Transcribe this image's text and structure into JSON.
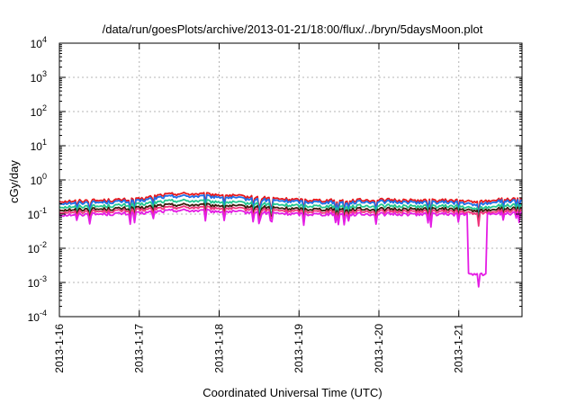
{
  "chart_data": {
    "type": "line",
    "title": "/data/run/goesPlots/archive/2013-01-21/18:00/flux/../bryn/5daysMoon.plot",
    "xlabel": "Coordinated Universal Time (UTC)",
    "ylabel": "cGy/day",
    "yscale": "log",
    "ylim": [
      0.0001,
      10000
    ],
    "xlim": [
      "2013-01-16",
      "2013-01-21T19:00"
    ],
    "grid": true,
    "x_ticks": [
      "2013-1-16",
      "2013-1-17",
      "2013-1-18",
      "2013-1-19",
      "2013-1-20",
      "2013-1-21"
    ],
    "y_ticks": [
      {
        "base": "10",
        "exp": "-4"
      },
      {
        "base": "10",
        "exp": "-3"
      },
      {
        "base": "10",
        "exp": "-2"
      },
      {
        "base": "10",
        "exp": "-1"
      },
      {
        "base": "10",
        "exp": "0"
      },
      {
        "base": "10",
        "exp": "1"
      },
      {
        "base": "10",
        "exp": "2"
      },
      {
        "base": "10",
        "exp": "3"
      },
      {
        "base": "10",
        "exp": "4"
      }
    ],
    "x": [
      "2013-01-16T00:00",
      "2013-01-16T12:00",
      "2013-01-17T00:00",
      "2013-01-17T06:00",
      "2013-01-17T12:00",
      "2013-01-18T00:00",
      "2013-01-18T12:00",
      "2013-01-19T00:00",
      "2013-01-19T12:00",
      "2013-01-20T00:00",
      "2013-01-20T12:00",
      "2013-01-21T00:00",
      "2013-01-21T05:00",
      "2013-01-21T12:00",
      "2013-01-21T19:00"
    ],
    "series": [
      {
        "color": "#e8181c",
        "values": [
          0.24,
          0.25,
          0.27,
          0.36,
          0.4,
          0.37,
          0.3,
          0.26,
          0.25,
          0.26,
          0.25,
          0.25,
          0.22,
          0.27,
          0.27
        ]
      },
      {
        "color": "#1e6fe8",
        "values": [
          0.21,
          0.22,
          0.24,
          0.31,
          0.34,
          0.32,
          0.26,
          0.23,
          0.22,
          0.23,
          0.22,
          0.22,
          0.18,
          0.24,
          0.24
        ]
      },
      {
        "color": "#22c690",
        "values": [
          0.165,
          0.17,
          0.19,
          0.23,
          0.25,
          0.23,
          0.2,
          0.175,
          0.17,
          0.175,
          0.17,
          0.17,
          0.14,
          0.18,
          0.18
        ]
      },
      {
        "color": "#3a1d0c",
        "values": [
          0.135,
          0.14,
          0.15,
          0.18,
          0.19,
          0.18,
          0.16,
          0.14,
          0.14,
          0.14,
          0.14,
          0.14,
          0.12,
          0.145,
          0.145
        ]
      },
      {
        "color": "#f0347a",
        "values": [
          0.115,
          0.12,
          0.13,
          0.15,
          0.16,
          0.15,
          0.135,
          0.12,
          0.12,
          0.12,
          0.12,
          0.12,
          0.1,
          0.125,
          0.125
        ]
      },
      {
        "color": "#e41de4",
        "values": [
          0.095,
          0.1,
          0.105,
          0.12,
          0.13,
          0.12,
          0.11,
          0.1,
          0.1,
          0.1,
          0.1,
          0.1,
          0.0017,
          0.105,
          0.105
        ]
      }
    ]
  }
}
